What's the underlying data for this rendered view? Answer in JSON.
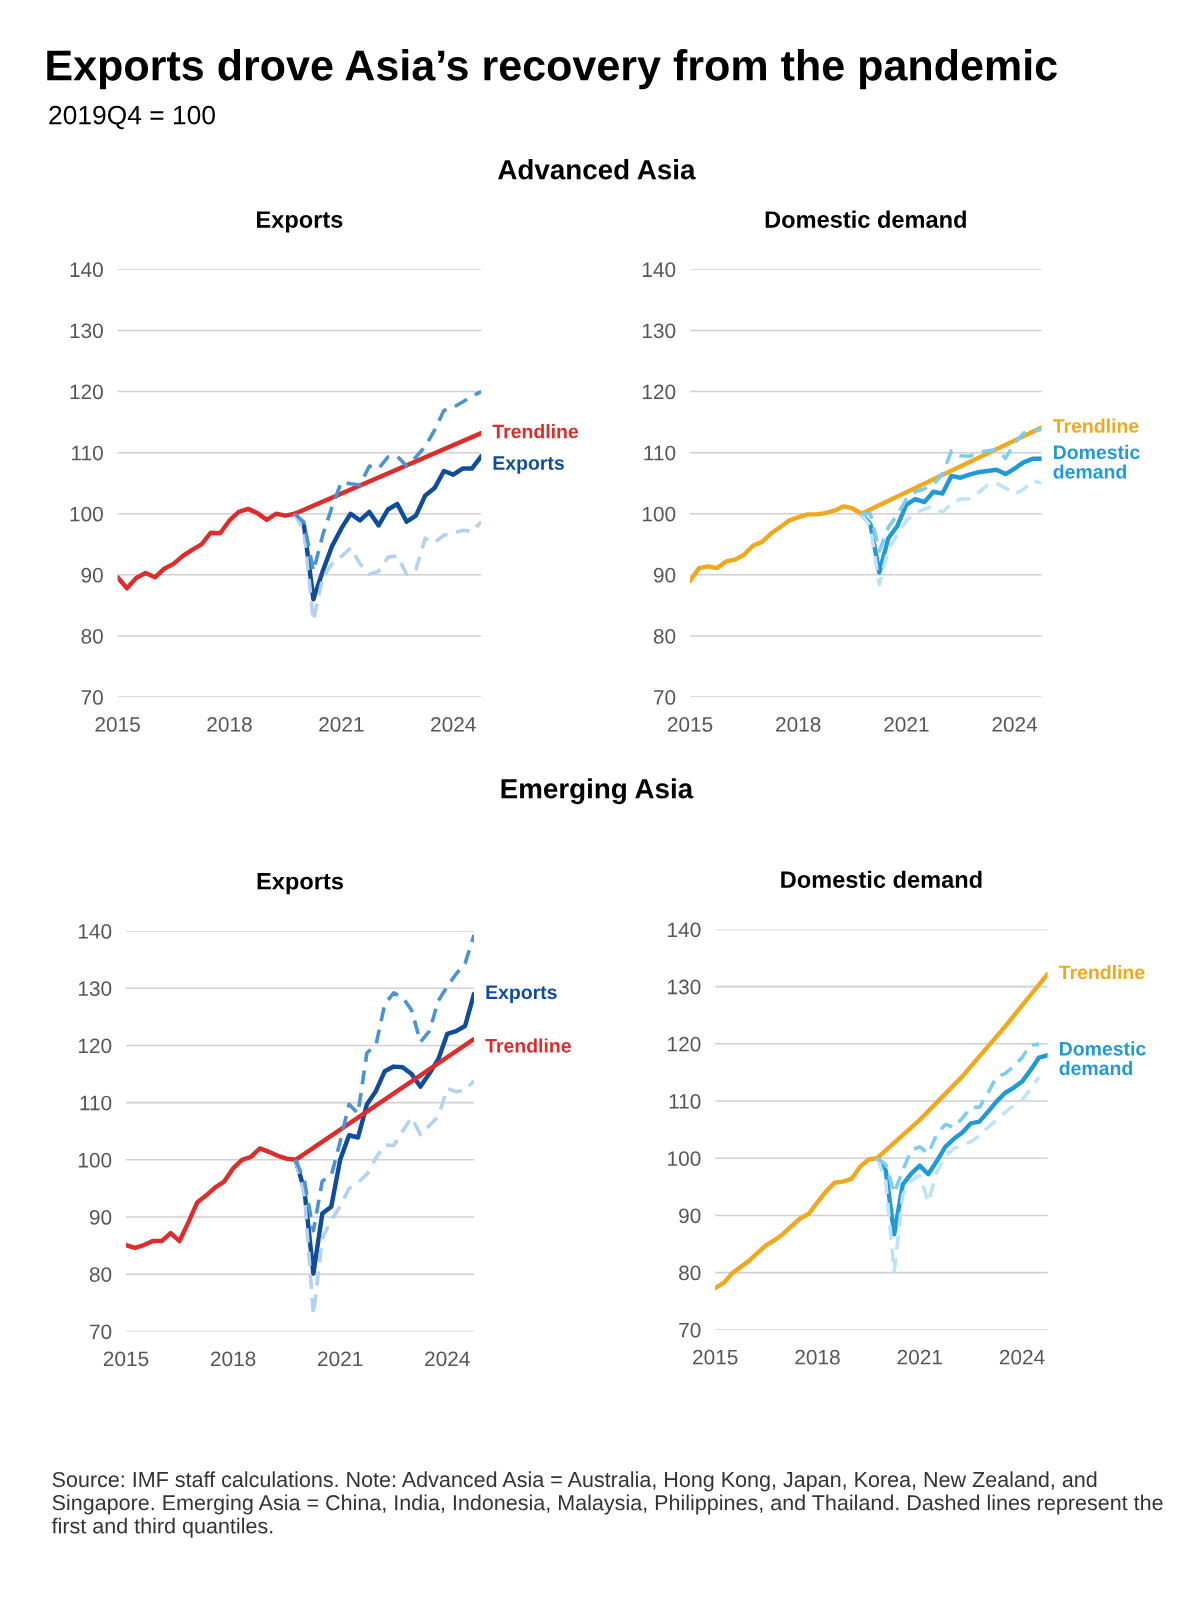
{
  "chart_data": [
    {
      "type": "line",
      "title": "Exports",
      "xlim": [
        2015,
        2024.75
      ],
      "xticks": [
        2015,
        2018,
        2021,
        2024
      ],
      "ylim": [
        70,
        140
      ],
      "yticks": [
        70,
        80,
        90,
        100,
        110,
        120,
        130,
        140
      ],
      "grid": "y",
      "annotations": [
        "Exports drove Asia’s recovery from the pandemic",
        "2019Q4 = 100",
        "Advanced Asia"
      ],
      "series": [
        {
          "color": "#b3d2f0",
          "line_style": "dashed",
          "x": [
            2019.75,
            2020,
            2020.25,
            2020.5,
            2020.75,
            2021,
            2021.25,
            2021.5,
            2021.75,
            2022,
            2022.25,
            2022.5,
            2022.75,
            2023,
            2023.25,
            2023.5,
            2023.75,
            2024,
            2024.25,
            2024.5,
            2024.75
          ],
          "values": [
            100.0,
            97.1,
            82.5,
            89.5,
            91.8,
            93.0,
            94.4,
            91.8,
            90.1,
            90.6,
            92.9,
            93.1,
            90.1,
            90.9,
            96.0,
            95.3,
            96.5,
            96.8,
            97.3,
            97.1,
            98.7
          ]
        },
        {
          "color": "#4d92d2",
          "line_style": "dashed",
          "x": [
            2019.75,
            2020,
            2020.25,
            2020.5,
            2020.75,
            2021,
            2021.25,
            2021.5,
            2021.75,
            2022,
            2022.25,
            2022.5,
            2022.75,
            2023,
            2023.25,
            2023.5,
            2023.75,
            2024,
            2024.25,
            2024.5,
            2024.75
          ],
          "values": [
            100.0,
            98.6,
            90.6,
            96.5,
            101.1,
            105.2,
            104.9,
            104.7,
            107.8,
            107.4,
            109.3,
            109.4,
            107.8,
            109.3,
            111.0,
            113.7,
            116.9,
            117.4,
            118.3,
            119.2,
            120.0
          ]
        },
        {
          "name": "Exports",
          "color": "#0f4c9c",
          "line_style": "solid",
          "x": [
            2019.75,
            2020,
            2020.25,
            2020.5,
            2020.75,
            2021,
            2021.25,
            2021.5,
            2021.75,
            2022,
            2022.25,
            2022.5,
            2022.75,
            2023,
            2023.25,
            2023.5,
            2023.75,
            2024,
            2024.25,
            2024.5,
            2024.75
          ],
          "values": [
            100.0,
            98.0,
            86.0,
            90.6,
            94.7,
            97.6,
            100.0,
            98.9,
            100.3,
            98.1,
            100.7,
            101.6,
            98.7,
            99.7,
            103.0,
            104.2,
            107.0,
            106.4,
            107.4,
            107.4,
            109.4
          ]
        },
        {
          "name": "Trendline",
          "color": "#dd2c2c",
          "line_style": "solid",
          "x": [
            2015,
            2015.25,
            2015.5,
            2015.75,
            2016,
            2016.25,
            2016.5,
            2016.75,
            2017,
            2017.25,
            2017.5,
            2017.75,
            2018,
            2018.25,
            2018.5,
            2018.75,
            2019,
            2019.25,
            2019.5,
            2019.75,
            2024.75
          ],
          "values": [
            89.6,
            87.8,
            89.5,
            90.3,
            89.6,
            91.0,
            91.8,
            93.1,
            94.1,
            95.0,
            96.9,
            96.8,
            98.9,
            100.3,
            100.8,
            100.1,
            99.0,
            100.0,
            99.7,
            100.0,
            113.2
          ]
        }
      ]
    },
    {
      "type": "line",
      "title": "Domestic demand",
      "xlim": [
        2015,
        2024.75
      ],
      "xticks": [
        2015,
        2018,
        2021,
        2024
      ],
      "ylim": [
        70,
        140
      ],
      "yticks": [
        70,
        80,
        90,
        100,
        110,
        120,
        130,
        140
      ],
      "grid": "y",
      "series": [
        {
          "color": "#bfe3f6",
          "line_style": "dashed",
          "x": [
            2019.75,
            2020,
            2020.25,
            2020.5,
            2020.75,
            2021,
            2021.25,
            2021.5,
            2021.75,
            2022,
            2022.25,
            2022.5,
            2022.75,
            2023,
            2023.25,
            2023.5,
            2023.75,
            2024,
            2024.25,
            2024.5,
            2024.75
          ],
          "values": [
            100.0,
            98.0,
            88.4,
            94.2,
            96.5,
            98.9,
            100.1,
            100.8,
            101.2,
            100.2,
            101.7,
            102.4,
            102.5,
            103.5,
            104.7,
            105.0,
            104.2,
            103.2,
            104.0,
            105.4,
            105.0
          ]
        },
        {
          "color": "#7ccdf0",
          "line_style": "dashed",
          "x": [
            2019.75,
            2020,
            2020.25,
            2020.5,
            2020.75,
            2021,
            2021.25,
            2021.5,
            2021.75,
            2022,
            2022.25,
            2022.5,
            2022.75,
            2023,
            2023.25,
            2023.5,
            2023.75,
            2024,
            2024.25,
            2024.5,
            2024.75
          ],
          "values": [
            100.0,
            100.0,
            93.9,
            97.8,
            99.8,
            102.4,
            103.6,
            104.1,
            104.8,
            106.5,
            110.3,
            109.5,
            109.4,
            110.0,
            110.3,
            110.5,
            109.1,
            111.5,
            113.2,
            113.5,
            113.8
          ]
        },
        {
          "name": "Domestic demand",
          "color": "#1f9ad6",
          "line_style": "solid",
          "x": [
            2019.75,
            2020,
            2020.25,
            2020.5,
            2020.75,
            2021,
            2021.25,
            2021.5,
            2021.75,
            2022,
            2022.25,
            2022.5,
            2022.75,
            2023,
            2023.25,
            2023.5,
            2023.75,
            2024,
            2024.25,
            2024.5,
            2024.75
          ],
          "values": [
            100.0,
            98.3,
            90.4,
            96.0,
            98.0,
            101.5,
            102.4,
            101.9,
            103.6,
            103.3,
            106.2,
            105.9,
            106.4,
            106.8,
            107.0,
            107.2,
            106.5,
            107.4,
            108.4,
            109.0,
            109.0
          ]
        },
        {
          "name": "Trendline",
          "color": "#f1a81f",
          "line_style": "solid",
          "x": [
            2015,
            2015.25,
            2015.5,
            2015.75,
            2016,
            2016.25,
            2016.5,
            2016.75,
            2017,
            2017.25,
            2017.5,
            2017.75,
            2018,
            2018.25,
            2018.5,
            2018.75,
            2019,
            2019.25,
            2019.5,
            2019.75,
            2024.75
          ],
          "values": [
            89.0,
            91.1,
            91.4,
            91.1,
            92.2,
            92.5,
            93.3,
            94.8,
            95.4,
            96.8,
            97.8,
            98.9,
            99.4,
            99.9,
            99.9,
            100.1,
            100.5,
            101.2,
            100.9,
            100.0,
            114.1
          ]
        }
      ]
    },
    {
      "type": "line",
      "title": "Exports",
      "xlim": [
        2015,
        2024.75
      ],
      "xticks": [
        2015,
        2018,
        2021,
        2024
      ],
      "ylim": [
        70,
        140
      ],
      "yticks": [
        70,
        80,
        90,
        100,
        110,
        120,
        130,
        140
      ],
      "grid": "y",
      "annotations": [
        "Emerging Asia"
      ],
      "series": [
        {
          "color": "#b3d2f0",
          "line_style": "dashed",
          "x": [
            2019.75,
            2020,
            2020.25,
            2020.5,
            2020.75,
            2021,
            2021.25,
            2021.5,
            2021.75,
            2022,
            2022.25,
            2022.5,
            2022.75,
            2023,
            2023.25,
            2023.5,
            2023.75,
            2024,
            2024.25,
            2024.5,
            2024.75
          ],
          "values": [
            100.0,
            93.8,
            72.9,
            86.3,
            89.4,
            91.9,
            95.0,
            96.0,
            97.5,
            100.3,
            102.6,
            102.5,
            105.0,
            107.4,
            104.4,
            106.0,
            107.6,
            112.5,
            111.9,
            112.2,
            113.8
          ]
        },
        {
          "color": "#4d92d2",
          "line_style": "dashed",
          "x": [
            2019.75,
            2020,
            2020.25,
            2020.5,
            2020.75,
            2021,
            2021.25,
            2021.5,
            2021.75,
            2022,
            2022.25,
            2022.5,
            2022.75,
            2023,
            2023.25,
            2023.5,
            2023.75,
            2024,
            2024.25,
            2024.5,
            2024.75
          ],
          "values": [
            100.0,
            96.3,
            87.6,
            96.3,
            97.2,
            103.2,
            109.7,
            108.1,
            118.7,
            120.0,
            127.2,
            129.2,
            128.4,
            126.2,
            120.6,
            122.5,
            127.8,
            130.3,
            132.5,
            134.3,
            139.3
          ]
        },
        {
          "name": "Exports",
          "color": "#0f4c9c",
          "line_style": "solid",
          "x": [
            2019.75,
            2020,
            2020.25,
            2020.5,
            2020.75,
            2021,
            2021.25,
            2021.5,
            2021.75,
            2022,
            2022.25,
            2022.5,
            2022.75,
            2023,
            2023.25,
            2023.5,
            2023.75,
            2024,
            2024.25,
            2024.5,
            2024.75
          ],
          "values": [
            100.0,
            94.7,
            80.1,
            90.6,
            91.8,
            100.0,
            104.3,
            103.9,
            109.7,
            112.0,
            115.5,
            116.3,
            116.2,
            115.0,
            112.8,
            115.1,
            117.6,
            122.0,
            122.5,
            123.4,
            129.0
          ]
        },
        {
          "name": "Trendline",
          "color": "#dd2c2c",
          "line_style": "solid",
          "x": [
            2015,
            2015.25,
            2015.5,
            2015.75,
            2016,
            2016.25,
            2016.5,
            2016.75,
            2017,
            2017.25,
            2017.5,
            2017.75,
            2018,
            2018.25,
            2018.5,
            2018.75,
            2019,
            2019.25,
            2019.5,
            2019.75,
            2024.75
          ],
          "values": [
            85.1,
            84.6,
            85.1,
            85.8,
            85.8,
            87.2,
            85.8,
            89.1,
            92.6,
            93.8,
            95.2,
            96.2,
            98.5,
            100.0,
            100.5,
            102.0,
            101.4,
            100.7,
            100.2,
            100.0,
            121.1
          ]
        }
      ]
    },
    {
      "type": "line",
      "title": "Domestic demand",
      "xlim": [
        2015,
        2024.75
      ],
      "xticks": [
        2015,
        2018,
        2021,
        2024
      ],
      "ylim": [
        70,
        140
      ],
      "yticks": [
        70,
        80,
        90,
        100,
        110,
        120,
        130,
        140
      ],
      "grid": "y",
      "annotations": [
        "Source: IMF staff calculations. Note: Advanced Asia = Australia, Hong Kong, Japan, Korea, New Zealand, and Singapore. Emerging Asia = China, India, Indonesia, Malaysia, Philippines, and Thailand. Dashed lines represent the first and third quantiles."
      ],
      "series": [
        {
          "color": "#bfe3f6",
          "line_style": "dashed",
          "x": [
            2019.75,
            2020,
            2020.25,
            2020.5,
            2020.75,
            2021,
            2021.25,
            2021.5,
            2021.75,
            2022,
            2022.25,
            2022.5,
            2022.75,
            2023,
            2023.25,
            2023.5,
            2023.75,
            2024,
            2024.25,
            2024.5
          ],
          "values": [
            100.0,
            96.1,
            80.1,
            93.6,
            96.1,
            97.0,
            92.3,
            97.6,
            100.4,
            101.7,
            102.3,
            102.9,
            103.9,
            105.4,
            106.7,
            108.0,
            109.2,
            110.2,
            112.1,
            114.2
          ]
        },
        {
          "color": "#7ccdf0",
          "line_style": "dashed",
          "x": [
            2019.75,
            2020,
            2020.25,
            2020.5,
            2020.75,
            2021,
            2021.25,
            2021.5,
            2021.75,
            2022,
            2022.25,
            2022.5,
            2022.75,
            2023,
            2023.25,
            2023.5,
            2023.75,
            2024,
            2024.25,
            2024.5
          ],
          "values": [
            100.0,
            98.9,
            93.9,
            97.9,
            101.4,
            102.0,
            100.8,
            104.2,
            105.9,
            105.4,
            107.0,
            108.9,
            108.9,
            111.4,
            114.2,
            114.8,
            116.0,
            117.6,
            119.8,
            119.9
          ]
        },
        {
          "name": "Domestic demand",
          "color": "#1f9ad6",
          "line_style": "solid",
          "x": [
            2019.75,
            2020,
            2020.25,
            2020.5,
            2020.75,
            2021,
            2021.25,
            2021.5,
            2021.75,
            2022,
            2022.25,
            2022.5,
            2022.75,
            2023,
            2023.25,
            2023.5,
            2023.75,
            2024,
            2024.25,
            2024.5,
            2024.75
          ],
          "values": [
            100.0,
            97.9,
            86.7,
            95.4,
            97.3,
            98.7,
            97.2,
            99.5,
            102.0,
            103.4,
            104.5,
            106.1,
            106.4,
            108.1,
            109.9,
            111.4,
            112.3,
            113.4,
            115.4,
            117.6,
            118.0
          ]
        },
        {
          "name": "Trendline",
          "color": "#f1a81f",
          "line_style": "solid",
          "x": [
            2015,
            2015.25,
            2015.5,
            2015.75,
            2016,
            2016.25,
            2016.5,
            2016.75,
            2017,
            2017.25,
            2017.5,
            2017.75,
            2018,
            2018.25,
            2018.5,
            2018.75,
            2019,
            2019.25,
            2019.5,
            2019.75,
            2021,
            2022.25,
            2023.5,
            2024.75
          ],
          "values": [
            77.3,
            78.2,
            79.9,
            81.0,
            82.1,
            83.5,
            84.8,
            85.7,
            86.8,
            88.2,
            89.5,
            90.3,
            92.3,
            94.2,
            95.7,
            95.9,
            96.4,
            98.5,
            99.8,
            100.0,
            106.7,
            114.3,
            123.0,
            132.2
          ]
        }
      ]
    }
  ]
}
